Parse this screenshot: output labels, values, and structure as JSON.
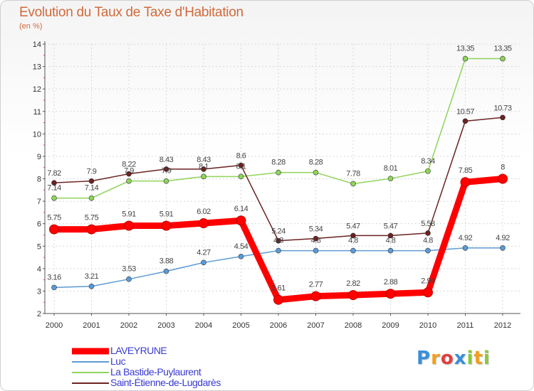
{
  "chart_data": {
    "type": "line",
    "title": "Evolution du Taux de Taxe d'Habitation",
    "subtitle": "(en %)",
    "x": [
      "2000",
      "2001",
      "2002",
      "2003",
      "2004",
      "2005",
      "2006",
      "2007",
      "2008",
      "2009",
      "2010",
      "2011",
      "2012"
    ],
    "ylim": [
      2,
      14
    ],
    "yticks": [
      "2",
      "3",
      "4",
      "5",
      "6",
      "7",
      "8",
      "9",
      "10",
      "11",
      "12",
      "13",
      "14"
    ],
    "grid": true,
    "legend_position": "bottom-left",
    "series": [
      {
        "name": "LAVEYRUNE",
        "color": "#ff0000",
        "values": [
          5.75,
          5.75,
          5.91,
          5.91,
          6.02,
          6.14,
          2.61,
          2.77,
          2.82,
          2.88,
          2.94,
          7.85,
          8
        ],
        "labels": [
          "5.75",
          "5.75",
          "5.91",
          "5.91",
          "6.02",
          "6.14",
          "2.61",
          "2.77",
          "2.82",
          "2.88",
          "2.94",
          "7.85",
          "8"
        ]
      },
      {
        "name": "Luc",
        "color": "#5b9bd5",
        "values": [
          3.16,
          3.21,
          3.53,
          3.88,
          4.27,
          4.54,
          4.8,
          4.8,
          4.8,
          4.8,
          4.8,
          4.92,
          4.92
        ],
        "labels": [
          "3.16",
          "3.21",
          "3.53",
          "3.88",
          "4.27",
          "4.54",
          "4.8",
          "4.8",
          "4.8",
          "4.8",
          "4.8",
          "4.92",
          "4.92"
        ]
      },
      {
        "name": "La Bastide-Puylaurent",
        "color": "#8fd45a",
        "values": [
          7.14,
          7.14,
          7.9,
          7.9,
          8.1,
          8.1,
          8.28,
          8.28,
          7.78,
          8.01,
          8.34,
          13.35,
          13.35
        ],
        "labels": [
          "7.14",
          "7.14",
          "7.9",
          "7.9",
          "8.1",
          "8.1",
          "8.28",
          "8.28",
          "7.78",
          "8.01",
          "8.34",
          "13.35",
          "13.35"
        ]
      },
      {
        "name": "Saint-Étienne-de-Lugdarès",
        "color": "#6b2222",
        "values": [
          7.82,
          7.9,
          8.22,
          8.43,
          8.43,
          8.6,
          5.24,
          5.34,
          5.47,
          5.47,
          5.58,
          10.57,
          10.73
        ],
        "labels": [
          "7.82",
          "7.9",
          "8.22",
          "8.43",
          "8.43",
          "8.6",
          "5.24",
          "5.34",
          "5.47",
          "5.47",
          "5.58",
          "10.57",
          "10.73"
        ]
      }
    ]
  },
  "brand": {
    "letters": [
      "P",
      "r",
      "o",
      "x",
      "i",
      "t",
      "i"
    ],
    "colors": [
      "#3a8fd8",
      "#f0a020",
      "#e04040",
      "#3a8fd8",
      "#8cc63f",
      "#f0a020",
      "#8cc63f"
    ]
  }
}
